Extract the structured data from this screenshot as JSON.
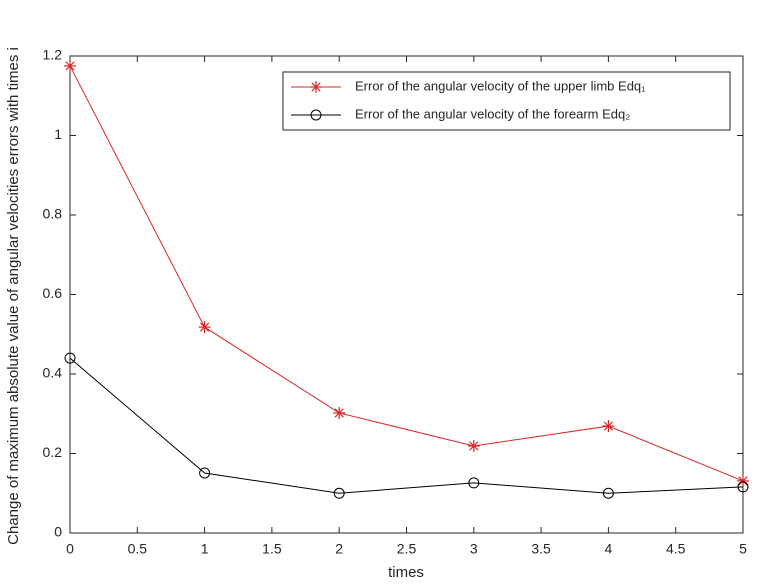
{
  "chart_data": {
    "type": "line",
    "x": [
      0,
      1,
      2,
      3,
      4,
      5
    ],
    "series": [
      {
        "name": "Error of the angular velocity of the upper limb Edq₁",
        "color": "#d62728",
        "marker": "asterisk",
        "values": [
          1.175,
          0.518,
          0.302,
          0.219,
          0.269,
          0.131
        ]
      },
      {
        "name": "Error of the angular velocity of the forearm Edq₂",
        "color": "#000000",
        "marker": "circle",
        "values": [
          0.44,
          0.151,
          0.1,
          0.126,
          0.1,
          0.116
        ]
      }
    ],
    "xlabel": "times",
    "ylabel": "Change of maximum absolute value of angular velocities errors with times i",
    "xlim": [
      0,
      5
    ],
    "xticks": [
      0,
      0.5,
      1,
      1.5,
      2,
      2.5,
      3,
      3.5,
      4,
      4.5,
      5
    ],
    "ylim": [
      0,
      1.2
    ],
    "yticks": [
      0,
      0.2,
      0.4,
      0.6,
      0.8,
      1,
      1.2
    ],
    "grid": false,
    "legend": "northeast"
  }
}
